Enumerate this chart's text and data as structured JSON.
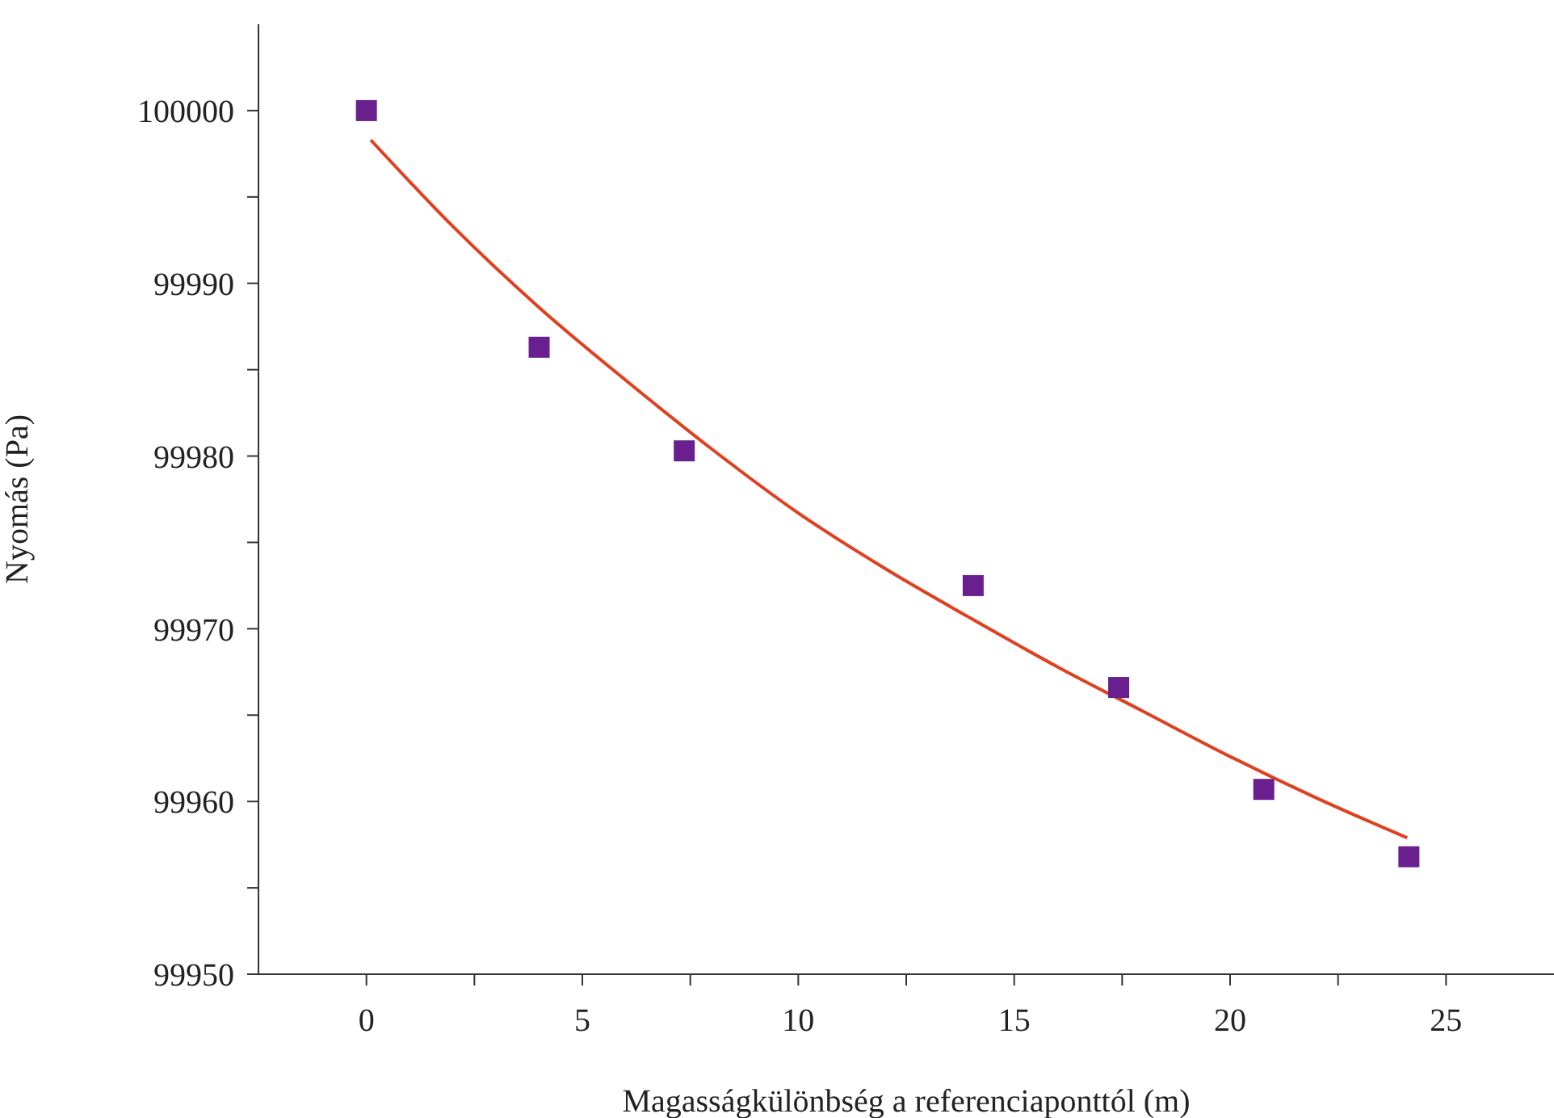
{
  "chart_data": {
    "type": "scatter",
    "xlabel": "Magasságkülönbség a referenciaponttól (m)",
    "ylabel": "Nyomás (Pa)",
    "xlim": [
      -2.5,
      27.5
    ],
    "xticks": [
      0,
      {
        "value": 2.5,
        "label": null
      },
      5,
      {
        "value": 7.5,
        "label": null
      },
      10,
      {
        "value": 12.5,
        "label": null
      },
      15,
      {
        "value": 17.5,
        "label": null
      },
      20,
      {
        "value": 22.5,
        "label": null
      },
      25
    ],
    "ylim": [
      99950,
      100005
    ],
    "yticks": [
      99950,
      {
        "value": 99955,
        "label": null
      },
      99960,
      {
        "value": 99965,
        "label": null
      },
      99970,
      {
        "value": 99975,
        "label": null
      },
      99980,
      {
        "value": 99985,
        "label": null
      },
      99990,
      {
        "value": 99995,
        "label": null
      },
      100000
    ],
    "series": [
      {
        "marker": "square",
        "color": "#6a1f8f",
        "x": [
          0,
          4.0,
          7.36,
          14.05,
          17.42,
          20.78,
          24.14
        ],
        "values": [
          100000,
          99986.3,
          99980.3,
          99972.5,
          99966.6,
          99960.7,
          99956.8
        ]
      },
      {
        "type": "line",
        "marker": "none",
        "color": "#e0401f",
        "x": [
          0.1,
          2,
          4,
          6,
          8,
          10,
          12,
          14,
          16,
          18,
          20,
          22,
          24.1
        ],
        "values": [
          99998.3,
          99993.3,
          99988.6,
          99984.4,
          99980.4,
          99976.7,
          99973.5,
          99970.6,
          99967.8,
          99965.2,
          99962.6,
          99960.2,
          99957.9
        ]
      }
    ]
  }
}
